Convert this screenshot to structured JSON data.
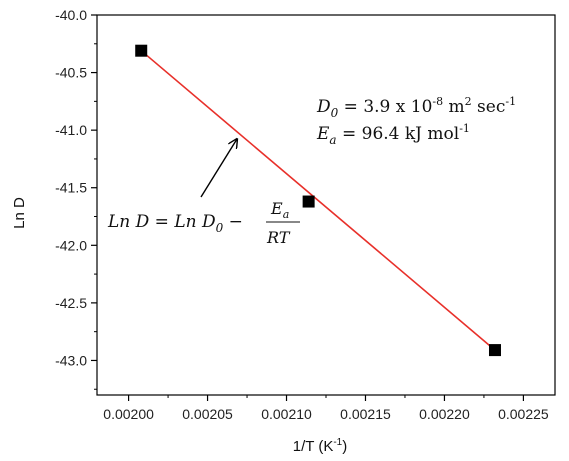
{
  "chart_data": {
    "type": "scatter",
    "xlabel": "1/T (K",
    "xlabel_sup": "-1",
    "xlabel_close": ")",
    "ylabel": "Ln D",
    "xlim": [
      0.00198,
      0.00227
    ],
    "ylim": [
      -43.3,
      -40.0
    ],
    "x_ticks": [
      "0.00200",
      "0.00205",
      "0.00210",
      "0.00215",
      "0.00220",
      "0.00225"
    ],
    "y_ticks": [
      "-40.0",
      "-40.5",
      "-41.0",
      "-41.5",
      "-42.0",
      "-42.5",
      "-43.0"
    ],
    "points": [
      {
        "x": 0.002008,
        "y": -40.31
      },
      {
        "x": 0.002114,
        "y": -41.62
      },
      {
        "x": 0.002232,
        "y": -42.91
      }
    ],
    "fit_line": {
      "x": [
        0.002008,
        0.002232
      ],
      "y": [
        -40.31,
        -42.91
      ],
      "color": "#e8302a"
    },
    "marker_color": "#000000",
    "grid": false,
    "annotations": {
      "d0_symbol": "D",
      "d0_sub": "0",
      "d0_value": " = 3.9 x 10",
      "d0_exp": "-8",
      "d0_unit": " m",
      "d0_unit_exp": "2",
      "d0_unit2": " sec",
      "d0_unit2_exp": "-1",
      "ea_symbol": "E",
      "ea_sub": "a",
      "ea_value": " = 96.4 kJ mol",
      "ea_exp": "-1",
      "equation_lhs": "Ln D = Ln D",
      "equation_lhs_sub": "0",
      "equation_minus": " −",
      "equation_numer": "E",
      "equation_numer_sub": "a",
      "equation_denom": "RT"
    }
  }
}
